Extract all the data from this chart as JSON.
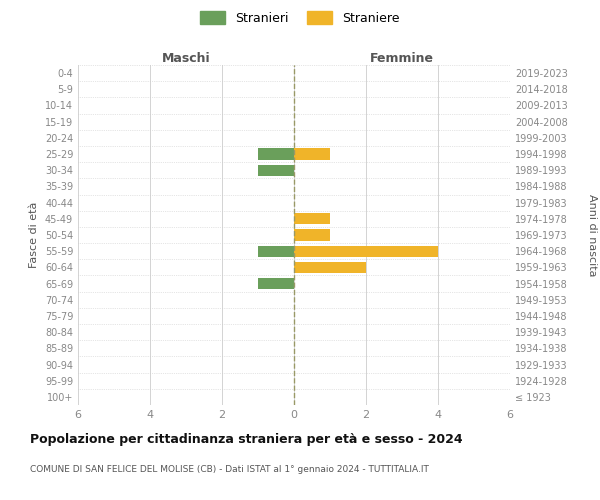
{
  "age_groups": [
    "100+",
    "95-99",
    "90-94",
    "85-89",
    "80-84",
    "75-79",
    "70-74",
    "65-69",
    "60-64",
    "55-59",
    "50-54",
    "45-49",
    "40-44",
    "35-39",
    "30-34",
    "25-29",
    "20-24",
    "15-19",
    "10-14",
    "5-9",
    "0-4"
  ],
  "birth_years": [
    "≤ 1923",
    "1924-1928",
    "1929-1933",
    "1934-1938",
    "1939-1943",
    "1944-1948",
    "1949-1953",
    "1954-1958",
    "1959-1963",
    "1964-1968",
    "1969-1973",
    "1974-1978",
    "1979-1983",
    "1984-1988",
    "1989-1993",
    "1994-1998",
    "1999-2003",
    "2004-2008",
    "2009-2013",
    "2014-2018",
    "2019-2023"
  ],
  "maschi": [
    0,
    0,
    0,
    0,
    0,
    0,
    0,
    1,
    0,
    1,
    0,
    0,
    0,
    0,
    1,
    1,
    0,
    0,
    0,
    0,
    0
  ],
  "femmine": [
    0,
    0,
    0,
    0,
    0,
    0,
    0,
    0,
    2,
    4,
    1,
    1,
    0,
    0,
    0,
    1,
    0,
    0,
    0,
    0,
    0
  ],
  "color_maschi": "#6a9f5b",
  "color_femmine": "#f0b429",
  "xlim": 6,
  "xlabel_left": "Maschi",
  "xlabel_right": "Femmine",
  "ylabel_left": "Fasce di età",
  "ylabel_right": "Anni di nascita",
  "title": "Popolazione per cittadinanza straniera per età e sesso - 2024",
  "subtitle": "COMUNE DI SAN FELICE DEL MOLISE (CB) - Dati ISTAT al 1° gennaio 2024 - TUTTITALIA.IT",
  "legend_maschi": "Stranieri",
  "legend_femmine": "Straniere",
  "bg_color": "#ffffff",
  "grid_color": "#cccccc",
  "bar_height": 0.7
}
